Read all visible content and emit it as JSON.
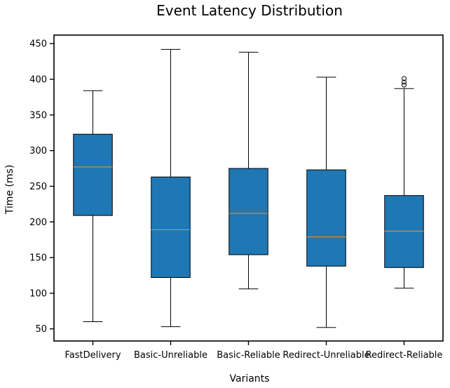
{
  "chart_data": {
    "type": "box",
    "title": "Event Latency Distribution",
    "xlabel": "Variants",
    "ylabel": "Time (ms)",
    "categories": [
      "FastDelivery",
      "Basic-Unreliable",
      "Basic-Reliable",
      "Redirect-Unreliable",
      "Redirect-Reliable"
    ],
    "boxes": [
      {
        "whisker_low": 60,
        "q1": 209,
        "median": 277,
        "q3": 323,
        "whisker_high": 384,
        "outliers": []
      },
      {
        "whisker_low": 53,
        "q1": 122,
        "median": 189,
        "q3": 263,
        "whisker_high": 442,
        "outliers": []
      },
      {
        "whisker_low": 106,
        "q1": 154,
        "median": 212,
        "q3": 275,
        "whisker_high": 438,
        "outliers": []
      },
      {
        "whisker_low": 52,
        "q1": 138,
        "median": 179,
        "q3": 273,
        "whisker_high": 403,
        "outliers": []
      },
      {
        "whisker_low": 107,
        "q1": 136,
        "median": 187,
        "q3": 237,
        "whisker_high": 387,
        "outliers": [
          392,
          396,
          401
        ]
      }
    ],
    "ylim": [
      33,
      462
    ],
    "yticks": [
      50,
      100,
      150,
      200,
      250,
      300,
      350,
      400,
      450
    ],
    "grid": false,
    "colors": {
      "box_fill": "#1f77b4",
      "median": "#d68a3c",
      "line": "#000000"
    }
  }
}
